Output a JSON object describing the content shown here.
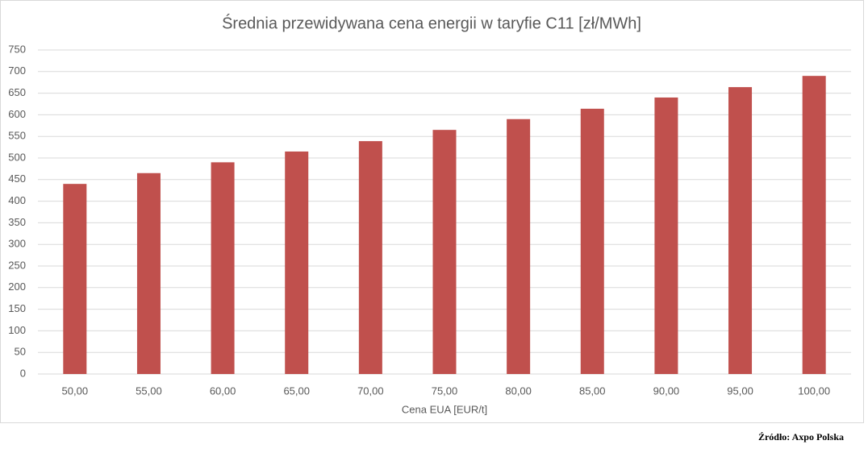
{
  "chart_data": {
    "type": "bar",
    "title": "Średnia przewidywana cena energii w taryfie C11 [zł/MWh]",
    "x_label": "Cena EUA [EUR/t]",
    "source": "Źródło: Axpo Polska",
    "categories": [
      "50,00",
      "55,00",
      "60,00",
      "65,00",
      "70,00",
      "75,00",
      "80,00",
      "85,00",
      "90,00",
      "95,00",
      "100,00"
    ],
    "values": [
      440,
      465,
      490,
      515,
      539,
      565,
      590,
      614,
      640,
      664,
      690
    ],
    "color": "#c0504d",
    "ylim": [
      0,
      750
    ],
    "yticks": [
      0,
      50,
      100,
      150,
      200,
      250,
      300,
      350,
      400,
      450,
      500,
      550,
      600,
      650,
      700,
      750
    ],
    "grid": true
  }
}
